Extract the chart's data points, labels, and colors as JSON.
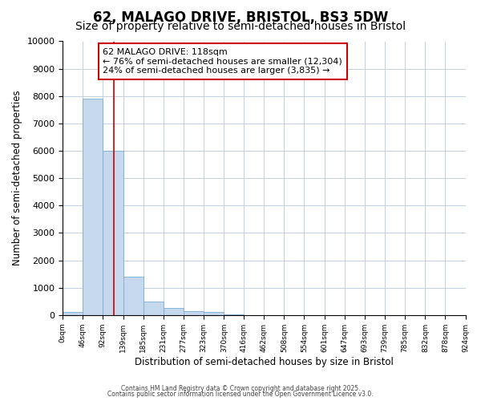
{
  "title": "62, MALAGO DRIVE, BRISTOL, BS3 5DW",
  "subtitle": "Size of property relative to semi-detached houses in Bristol",
  "xlabel": "Distribution of semi-detached houses by size in Bristol",
  "ylabel": "Number of semi-detached properties",
  "bar_edges": [
    0,
    46,
    92,
    139,
    185,
    231,
    277,
    323,
    370,
    416,
    462,
    508,
    554,
    601,
    647,
    693,
    739,
    785,
    832,
    878,
    924
  ],
  "bar_heights": [
    100,
    7900,
    6000,
    1400,
    500,
    250,
    150,
    100,
    20,
    0,
    0,
    0,
    0,
    0,
    0,
    0,
    0,
    0,
    0,
    0
  ],
  "bar_color": "#c5d8ee",
  "bar_edgecolor": "#7aadd4",
  "property_size": 118,
  "red_line_color": "#cc0000",
  "annotation_line1": "62 MALAGO DRIVE: 118sqm",
  "annotation_line2": "← 76% of semi-detached houses are smaller (12,304)",
  "annotation_line3": "24% of semi-detached houses are larger (3,835) →",
  "annotation_box_edgecolor": "#cc0000",
  "ylim": [
    0,
    10000
  ],
  "yticks": [
    0,
    1000,
    2000,
    3000,
    4000,
    5000,
    6000,
    7000,
    8000,
    9000,
    10000
  ],
  "background_color": "#ffffff",
  "plot_bg_color": "#ffffff",
  "grid_color": "#c0d0e0",
  "footer_line1": "Contains HM Land Registry data © Crown copyright and database right 2025.",
  "footer_line2": "Contains public sector information licensed under the Open Government Licence v3.0.",
  "title_fontsize": 12,
  "subtitle_fontsize": 10,
  "annotation_fontsize": 8
}
